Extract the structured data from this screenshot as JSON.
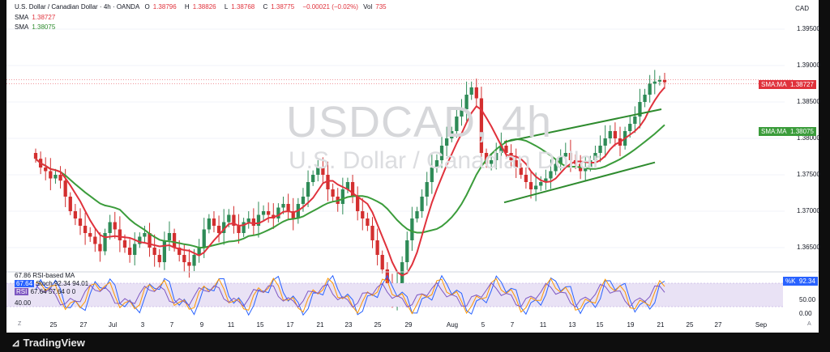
{
  "header": {
    "title": "U.S. Dollar / Canadian Dollar · 4h · OANDA",
    "o_label": "O",
    "o": "1.38796",
    "h_label": "H",
    "h": "1.38826",
    "l_label": "L",
    "l": "1.38768",
    "c_label": "C",
    "c": "1.38775",
    "change": "−0.00021 (−0.02%)",
    "vol_label": "Vol",
    "vol": "735",
    "currency": "CAD"
  },
  "indicators": {
    "sma1_label": "SMA",
    "sma1_value": "1.38727",
    "sma2_label": "SMA",
    "sma2_value": "1.38075"
  },
  "watermark": {
    "symbol": "USDCAD, 4h",
    "name": "U.S. Dollar / Canadian Dollar"
  },
  "price_tags": [
    {
      "label": "SMA:MA",
      "value": "1.38727",
      "color": "#e0323c"
    },
    {
      "label": "SMA:MA",
      "value": "1.38075",
      "color": "#3b9c3b"
    }
  ],
  "rsi_panel": {
    "line1": "67.86  RSI-based MA",
    "line2_value": "67.64",
    "line2_text": "Stoch  92.34  94.01",
    "line3_value": "RSI",
    "line3_text": "67.64  57.64  0  0",
    "left_level": "40.00",
    "k_label": "%K",
    "k_value": "92.34",
    "rsi_value": "67.64",
    "ticks": [
      "50.00",
      "0.00"
    ]
  },
  "chart_data": {
    "type": "candlestick",
    "symbol": "USDCAD",
    "timeframe": "4h",
    "price_axis": {
      "ticks": [
        "1.39500",
        "1.39000",
        "1.38500",
        "1.38000",
        "1.37500",
        "1.37000",
        "1.36500"
      ],
      "range": [
        1.3625,
        1.3975
      ]
    },
    "date_axis": {
      "ticks": [
        "25",
        "27",
        "Jul",
        "3",
        "7",
        "9",
        "11",
        "15",
        "17",
        "21",
        "23",
        "25",
        "29",
        "Aug",
        "5",
        "7",
        "11",
        "13",
        "15",
        "19",
        "21",
        "25",
        "27",
        "Sep"
      ]
    },
    "closes": [
      1.3772,
      1.376,
      1.3755,
      1.3745,
      1.375,
      1.3742,
      1.372,
      1.37,
      1.369,
      1.368,
      1.367,
      1.3665,
      1.3655,
      1.3645,
      1.367,
      1.3685,
      1.3675,
      1.366,
      1.365,
      1.364,
      1.3655,
      1.3665,
      1.367,
      1.365,
      1.364,
      1.363,
      1.366,
      1.367,
      1.365,
      1.364,
      1.363,
      1.3625,
      1.364,
      1.365,
      1.3675,
      1.369,
      1.368,
      1.367,
      1.3685,
      1.3695,
      1.368,
      1.367,
      1.3685,
      1.369,
      1.368,
      1.3695,
      1.37,
      1.3695,
      1.369,
      1.3705,
      1.371,
      1.37,
      1.369,
      1.371,
      1.372,
      1.374,
      1.375,
      1.376,
      1.375,
      1.373,
      1.372,
      1.371,
      1.373,
      1.374,
      1.372,
      1.37,
      1.369,
      1.368,
      1.366,
      1.364,
      1.362,
      1.36,
      1.358,
      1.36,
      1.363,
      1.366,
      1.369,
      1.37,
      1.372,
      1.374,
      1.376,
      1.377,
      1.379,
      1.38,
      1.381,
      1.383,
      1.384,
      1.386,
      1.387,
      1.3855,
      1.378,
      1.3765,
      1.377,
      1.378,
      1.379,
      1.378,
      1.377,
      1.376,
      1.375,
      1.374,
      1.373,
      1.3735,
      1.374,
      1.3745,
      1.3755,
      1.3765,
      1.3775,
      1.378,
      1.377,
      1.3765,
      1.3755,
      1.376,
      1.377,
      1.378,
      1.379,
      1.38,
      1.381,
      1.38,
      1.379,
      1.381,
      1.382,
      1.383,
      1.385,
      1.386,
      1.3875,
      1.3878,
      1.388,
      1.3877
    ],
    "sma_fast": {
      "name": "SMA",
      "last": 1.38727
    },
    "sma_slow": {
      "name": "SMA",
      "last": 1.38075
    },
    "channel": {
      "upper": [
        [
          1.3795,
          1.384
        ]
      ],
      "lower": [
        [
          1.3712,
          1.3767
        ]
      ]
    },
    "rsi_levels": [
      50,
      0
    ]
  }
}
